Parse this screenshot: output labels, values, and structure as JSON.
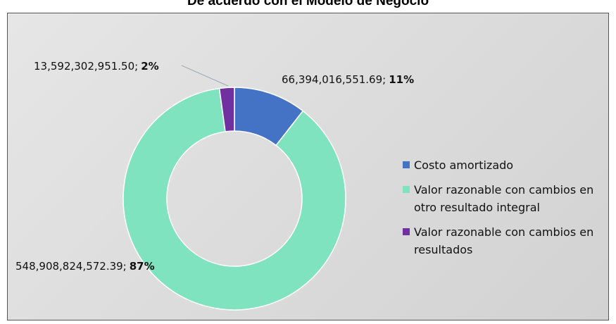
{
  "chart_data": {
    "type": "doughnut",
    "title": "De acuerdo con el Modelo de Negocio",
    "categories": [
      "Costo amortizado",
      "Valor razonable con cambios en otro resultado integral",
      "Valor razonable con cambios en resultados"
    ],
    "values": [
      66394016551.69,
      548908824572.39,
      13592302951.5
    ],
    "value_labels": [
      "66,394,016,551.69;",
      "548,908,824,572.39;",
      "13,592,302,951.50;"
    ],
    "percents": [
      11,
      87,
      2
    ],
    "percent_labels": [
      "11%",
      "87%",
      "2%"
    ],
    "colors": [
      "#4472c4",
      "#7fe3bf",
      "#7030a0"
    ],
    "legend": "right"
  }
}
